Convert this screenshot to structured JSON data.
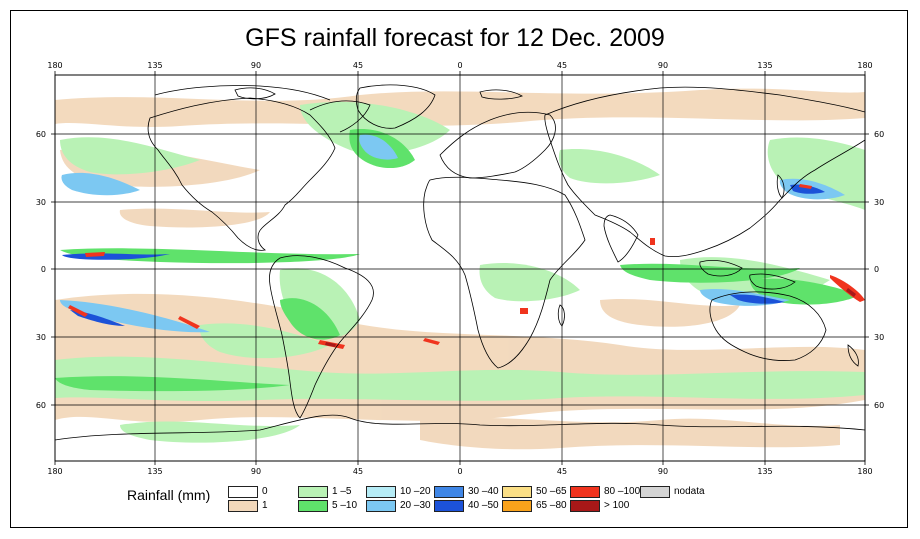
{
  "title": "GFS rainfall forecast for 12 Dec. 2009",
  "axes": {
    "lon_ticks": [
      "180",
      "135",
      "90",
      "45",
      "0",
      "45",
      "90",
      "135",
      "180"
    ],
    "lat_ticks": [
      "60",
      "30",
      "0",
      "30",
      "60"
    ]
  },
  "legend": {
    "title": "Rainfall (mm)",
    "items": [
      {
        "label": "0",
        "color": "#ffffff"
      },
      {
        "label": "1",
        "color": "#f2d8bb"
      },
      {
        "label": "1 –5",
        "color": "#b9f2b5"
      },
      {
        "label": "5 –10",
        "color": "#5fe26b"
      },
      {
        "label": "10 –20",
        "color": "#b6ecf6"
      },
      {
        "label": "20 –30",
        "color": "#7cc8f2"
      },
      {
        "label": "30 –40",
        "color": "#3f86e6"
      },
      {
        "label": "40 –50",
        "color": "#1c52d8"
      },
      {
        "label": "50 –65",
        "color": "#fbdf86"
      },
      {
        "label": "65 –80",
        "color": "#f9a21b"
      },
      {
        "label": "80 –100",
        "color": "#f0341e"
      },
      {
        "label": "> 100",
        "color": "#a81818"
      },
      {
        "label": "nodata",
        "color": "#d4d4d4"
      }
    ]
  }
}
